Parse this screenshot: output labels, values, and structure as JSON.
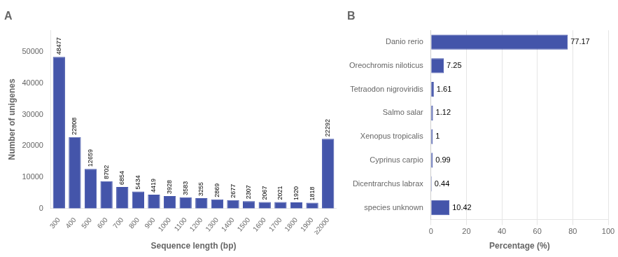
{
  "chart_data": [
    {
      "type": "bar",
      "title": "A",
      "xlabel": "Sequence length (bp)",
      "ylabel": "Number of unigenes",
      "categories": [
        "300",
        "400",
        "500",
        "600",
        "700",
        "800",
        "900",
        "1000",
        "1100",
        "1200",
        "1300",
        "1400",
        "1500",
        "1600",
        "1700",
        "1800",
        "1900",
        "≥2000"
      ],
      "values": [
        48477,
        22808,
        12659,
        8702,
        6854,
        5434,
        4419,
        3928,
        3583,
        3255,
        2869,
        2677,
        2307,
        2067,
        2021,
        1920,
        1818,
        22292
      ],
      "color": "#4455aa",
      "ylim": [
        0,
        57000
      ],
      "yticks": [
        0,
        10000,
        20000,
        30000,
        40000,
        50000
      ],
      "grid": false,
      "data_labels": true
    },
    {
      "type": "bar",
      "title": "B",
      "orientation": "horizontal",
      "xlabel": "Percentage (%)",
      "categories": [
        "Danio rerio",
        "Oreochromis niloticus",
        "Tetraodon nigroviridis",
        "Salmo salar",
        "Xenopus tropicalis",
        "Cyprinus carpio",
        "Dicentrarchus labrax",
        "species unknown"
      ],
      "values": [
        77.17,
        7.25,
        1.61,
        1.12,
        1,
        0.99,
        0.44,
        10.42
      ],
      "color": "#4455aa",
      "xlim": [
        0,
        100
      ],
      "xticks": [
        0,
        20,
        40,
        60,
        80,
        100
      ],
      "grid": true,
      "data_labels": true
    }
  ]
}
